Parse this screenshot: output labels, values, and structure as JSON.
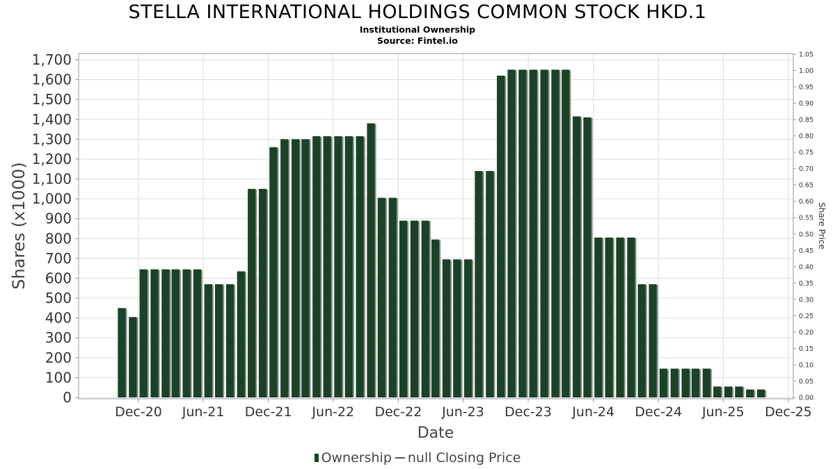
{
  "title": "STELLA INTERNATIONAL HOLDINGS COMMON STOCK HKD.1",
  "subtitle": "Institutional Ownership",
  "source": "Source: Fintel.io",
  "legend": {
    "ownership_label": "Ownership",
    "price_label": "null Closing Price"
  },
  "colors": {
    "bar": "#1a4226",
    "bar_shadow": "#8a8a8a",
    "grid": "#dddddd"
  },
  "chart_data": {
    "type": "bar",
    "xlabel": "Date",
    "ylabel": "Shares (x1000)",
    "y2label": "Share Price",
    "ylim": [
      0,
      1700
    ],
    "y2lim": [
      0,
      1.05
    ],
    "grid": true,
    "legend_position": "bottom",
    "x_range": [
      "2020-07-01",
      "2025-12-31"
    ],
    "yticks": [
      "0",
      "100",
      "200",
      "300",
      "400",
      "500",
      "600",
      "700",
      "800",
      "900",
      "1,000",
      "1,100",
      "1,200",
      "1,300",
      "1,400",
      "1,500",
      "1,600",
      "1,700"
    ],
    "y2ticks": [
      "0.00",
      "0.05",
      "0.10",
      "0.15",
      "0.20",
      "0.25",
      "0.30",
      "0.35",
      "0.40",
      "0.45",
      "0.50",
      "0.55",
      "0.60",
      "0.65",
      "0.70",
      "0.75",
      "0.80",
      "0.85",
      "0.90",
      "0.95",
      "1.00",
      "1.05"
    ],
    "xticks": [
      {
        "label": "Dec-20",
        "date": "2020-12-01"
      },
      {
        "label": "Jun-21",
        "date": "2021-06-01"
      },
      {
        "label": "Dec-21",
        "date": "2021-12-01"
      },
      {
        "label": "Jun-22",
        "date": "2022-06-01"
      },
      {
        "label": "Dec-22",
        "date": "2022-12-01"
      },
      {
        "label": "Jun-23",
        "date": "2023-06-01"
      },
      {
        "label": "Dec-23",
        "date": "2023-12-01"
      },
      {
        "label": "Jun-24",
        "date": "2024-06-01"
      },
      {
        "label": "Dec-24",
        "date": "2024-12-01"
      },
      {
        "label": "Jun-25",
        "date": "2025-06-01"
      },
      {
        "label": "Dec-25",
        "date": "2025-12-01"
      }
    ],
    "series": [
      {
        "name": "Ownership",
        "points": [
          {
            "x": "2020-10-15",
            "y": 450
          },
          {
            "x": "2020-11-15",
            "y": 405
          },
          {
            "x": "2020-12-15",
            "y": 645
          },
          {
            "x": "2021-01-15",
            "y": 645
          },
          {
            "x": "2021-02-15",
            "y": 645
          },
          {
            "x": "2021-03-15",
            "y": 645
          },
          {
            "x": "2021-04-15",
            "y": 645
          },
          {
            "x": "2021-05-15",
            "y": 645
          },
          {
            "x": "2021-06-15",
            "y": 570
          },
          {
            "x": "2021-07-15",
            "y": 570
          },
          {
            "x": "2021-08-15",
            "y": 570
          },
          {
            "x": "2021-09-15",
            "y": 635
          },
          {
            "x": "2021-10-15",
            "y": 1050
          },
          {
            "x": "2021-11-15",
            "y": 1050
          },
          {
            "x": "2021-12-15",
            "y": 1260
          },
          {
            "x": "2022-01-15",
            "y": 1300
          },
          {
            "x": "2022-02-15",
            "y": 1300
          },
          {
            "x": "2022-03-15",
            "y": 1300
          },
          {
            "x": "2022-04-15",
            "y": 1315
          },
          {
            "x": "2022-05-15",
            "y": 1315
          },
          {
            "x": "2022-06-15",
            "y": 1315
          },
          {
            "x": "2022-07-15",
            "y": 1315
          },
          {
            "x": "2022-08-15",
            "y": 1315
          },
          {
            "x": "2022-09-15",
            "y": 1380
          },
          {
            "x": "2022-10-15",
            "y": 1005
          },
          {
            "x": "2022-11-15",
            "y": 1005
          },
          {
            "x": "2022-12-15",
            "y": 890
          },
          {
            "x": "2023-01-15",
            "y": 890
          },
          {
            "x": "2023-02-15",
            "y": 890
          },
          {
            "x": "2023-03-15",
            "y": 795
          },
          {
            "x": "2023-04-15",
            "y": 695
          },
          {
            "x": "2023-05-15",
            "y": 695
          },
          {
            "x": "2023-06-15",
            "y": 695
          },
          {
            "x": "2023-07-15",
            "y": 1140
          },
          {
            "x": "2023-08-15",
            "y": 1140
          },
          {
            "x": "2023-09-15",
            "y": 1620
          },
          {
            "x": "2023-10-15",
            "y": 1650
          },
          {
            "x": "2023-11-15",
            "y": 1650
          },
          {
            "x": "2023-12-15",
            "y": 1650
          },
          {
            "x": "2024-01-15",
            "y": 1650
          },
          {
            "x": "2024-02-15",
            "y": 1650
          },
          {
            "x": "2024-03-15",
            "y": 1650
          },
          {
            "x": "2024-04-15",
            "y": 1415
          },
          {
            "x": "2024-05-15",
            "y": 1410
          },
          {
            "x": "2024-06-15",
            "y": 805
          },
          {
            "x": "2024-07-15",
            "y": 805
          },
          {
            "x": "2024-08-15",
            "y": 805
          },
          {
            "x": "2024-09-15",
            "y": 805
          },
          {
            "x": "2024-10-15",
            "y": 570
          },
          {
            "x": "2024-11-15",
            "y": 570
          },
          {
            "x": "2024-12-15",
            "y": 145
          },
          {
            "x": "2025-01-15",
            "y": 145
          },
          {
            "x": "2025-02-15",
            "y": 145
          },
          {
            "x": "2025-03-15",
            "y": 145
          },
          {
            "x": "2025-04-15",
            "y": 145
          },
          {
            "x": "2025-05-15",
            "y": 55
          },
          {
            "x": "2025-06-15",
            "y": 55
          },
          {
            "x": "2025-07-15",
            "y": 55
          },
          {
            "x": "2025-08-15",
            "y": 40
          },
          {
            "x": "2025-09-15",
            "y": 40
          }
        ]
      }
    ]
  }
}
